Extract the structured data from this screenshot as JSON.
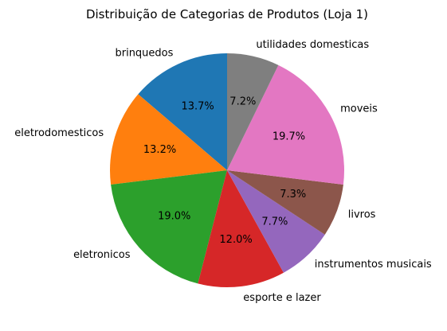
{
  "chart_data": {
    "type": "pie",
    "title": "Distribuição de Categorias de Produtos (Loja 1)",
    "start_angle_deg": 90,
    "direction": "counterclockwise",
    "slices": [
      {
        "label": "brinquedos",
        "value": 13.7,
        "pct_label": "13.7%",
        "color": "#1f77b4"
      },
      {
        "label": "eletrodomesticos",
        "value": 13.2,
        "pct_label": "13.2%",
        "color": "#ff7f0e"
      },
      {
        "label": "eletronicos",
        "value": 19.0,
        "pct_label": "19.0%",
        "color": "#2ca02c"
      },
      {
        "label": "esporte e lazer",
        "value": 12.0,
        "pct_label": "12.0%",
        "color": "#d62728"
      },
      {
        "label": "instrumentos musicais",
        "value": 7.7,
        "pct_label": "7.7%",
        "color": "#9467bd"
      },
      {
        "label": "livros",
        "value": 7.3,
        "pct_label": "7.3%",
        "color": "#8c564b"
      },
      {
        "label": "moveis",
        "value": 19.7,
        "pct_label": "19.7%",
        "color": "#e377c2"
      },
      {
        "label": "utilidades domesticas",
        "value": 7.2,
        "pct_label": "7.2%",
        "color": "#7f7f7f"
      }
    ]
  }
}
